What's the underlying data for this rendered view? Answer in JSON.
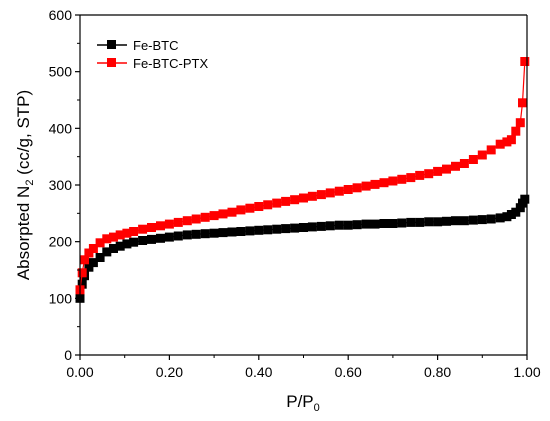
{
  "chart_data": {
    "type": "scatter",
    "xlabel": "P/P",
    "xlabel_subscript": "0",
    "ylabel_prefix": "Absorpted N",
    "ylabel_subscript": "2",
    "ylabel_suffix": " (cc/g, STP)",
    "xlim": [
      0,
      1
    ],
    "ylim": [
      0,
      600
    ],
    "x_ticks": [
      "0.00",
      "0.20",
      "0.40",
      "0.60",
      "0.80",
      "1.00"
    ],
    "y_ticks": [
      "0",
      "100",
      "200",
      "300",
      "400",
      "500",
      "600"
    ],
    "legend_position": "top-left",
    "grid": false,
    "series": [
      {
        "name": "Fe-BTC",
        "color": "#000000",
        "marker": "square",
        "x": [
          0.0,
          0.005,
          0.01,
          0.02,
          0.03,
          0.045,
          0.06,
          0.075,
          0.09,
          0.105,
          0.12,
          0.14,
          0.16,
          0.18,
          0.2,
          0.22,
          0.24,
          0.26,
          0.28,
          0.3,
          0.32,
          0.34,
          0.36,
          0.38,
          0.4,
          0.42,
          0.44,
          0.46,
          0.48,
          0.5,
          0.52,
          0.54,
          0.56,
          0.58,
          0.6,
          0.62,
          0.64,
          0.66,
          0.68,
          0.7,
          0.72,
          0.74,
          0.76,
          0.78,
          0.8,
          0.82,
          0.84,
          0.86,
          0.88,
          0.9,
          0.92,
          0.94,
          0.955,
          0.965,
          0.975,
          0.985,
          0.99,
          0.995
        ],
        "y": [
          100,
          125,
          140,
          155,
          163,
          172,
          182,
          188,
          192,
          196,
          199,
          202,
          204,
          206,
          208,
          210,
          212,
          213,
          214,
          215,
          216,
          217,
          218,
          219,
          220,
          221,
          222,
          223,
          224,
          225,
          226,
          227,
          228,
          229,
          229,
          230,
          231,
          231,
          232,
          232,
          233,
          234,
          234,
          235,
          235,
          236,
          237,
          237,
          238,
          239,
          240,
          242,
          244,
          248,
          252,
          260,
          268,
          275
        ]
      },
      {
        "name": "Fe-BTC-PTX",
        "color": "#ff0000",
        "marker": "square",
        "x": [
          0.0,
          0.005,
          0.01,
          0.02,
          0.03,
          0.045,
          0.06,
          0.075,
          0.09,
          0.105,
          0.12,
          0.14,
          0.16,
          0.18,
          0.2,
          0.22,
          0.24,
          0.26,
          0.28,
          0.3,
          0.32,
          0.34,
          0.36,
          0.38,
          0.4,
          0.42,
          0.44,
          0.46,
          0.48,
          0.5,
          0.52,
          0.54,
          0.56,
          0.58,
          0.6,
          0.62,
          0.64,
          0.66,
          0.68,
          0.7,
          0.72,
          0.74,
          0.76,
          0.78,
          0.8,
          0.82,
          0.84,
          0.86,
          0.88,
          0.9,
          0.92,
          0.94,
          0.955,
          0.965,
          0.975,
          0.985,
          0.99,
          0.995
        ],
        "y": [
          115,
          145,
          168,
          180,
          188,
          198,
          205,
          208,
          212,
          215,
          218,
          222,
          225,
          228,
          231,
          234,
          237,
          240,
          243,
          246,
          249,
          252,
          256,
          259,
          262,
          265,
          268,
          271,
          274,
          277,
          280,
          283,
          286,
          289,
          292,
          295,
          298,
          301,
          304,
          307,
          310,
          313,
          317,
          320,
          324,
          328,
          333,
          338,
          345,
          353,
          362,
          372,
          376,
          380,
          395,
          410,
          445,
          518
        ]
      }
    ]
  }
}
